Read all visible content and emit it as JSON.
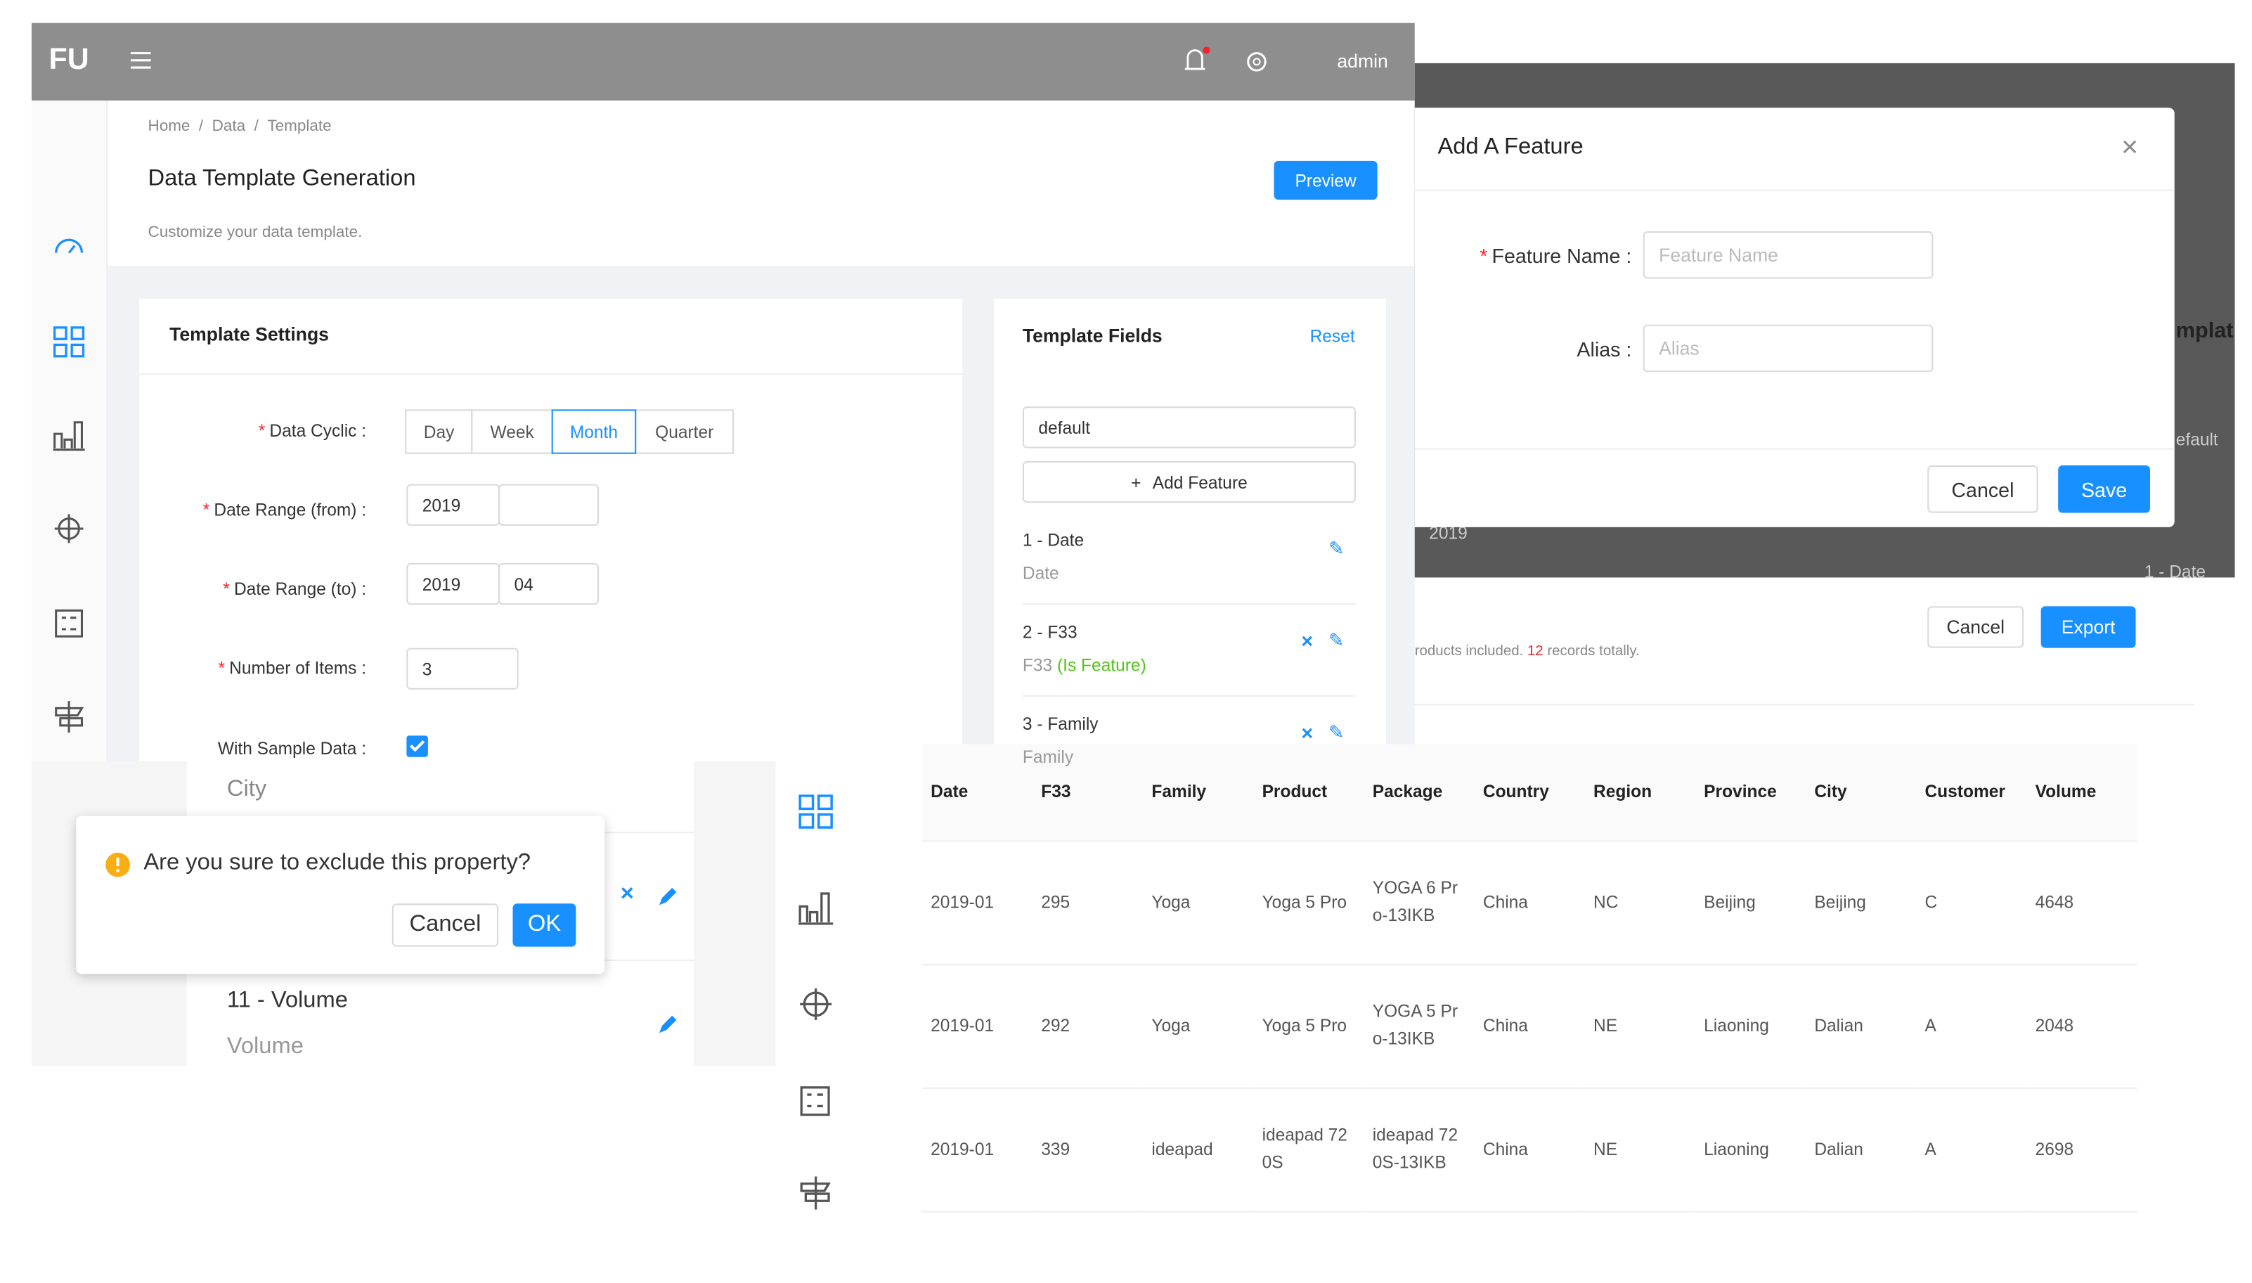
{
  "topbar": {
    "logo": "FU",
    "user": "admin"
  },
  "breadcrumb": [
    "Home",
    "Data",
    "Template"
  ],
  "page": {
    "title": "Data Template Generation",
    "subtitle": "Customize your data template.",
    "preview": "Preview"
  },
  "settings": {
    "title": "Template Settings",
    "cyclic_label": "Data Cyclic :",
    "cyclic_options": [
      "Day",
      "Week",
      "Month",
      "Quarter"
    ],
    "from_label": "Date Range (from) :",
    "from_year": "2019",
    "to_label": "Date Range (to) :",
    "to_year": "2019",
    "to_month": "04",
    "items_label": "Number of Items :",
    "items_value": "3",
    "sample_label": "With Sample Data :"
  },
  "fields": {
    "title": "Template Fields",
    "reset": "Reset",
    "select": "default",
    "add": "Add Feature",
    "items": [
      {
        "name": "1 - Date",
        "sub": "Date"
      },
      {
        "name": "2 - F33",
        "sub": "F33",
        "tag": "(Is Feature)"
      },
      {
        "name": "3 - Family",
        "sub": "Family"
      }
    ]
  },
  "modal": {
    "title": "Add A Feature",
    "name_label": "Feature Name :",
    "name_placeholder": "Feature Name",
    "alias_label": "Alias :",
    "alias_placeholder": "Alias",
    "cancel": "Cancel",
    "save": "Save"
  },
  "behind": {
    "template": "mplat",
    "default": "efault",
    "year": "2019",
    "field": "1 - Date"
  },
  "export": {
    "cancel": "Cancel",
    "export": "Export",
    "note_pre": "roducts included.",
    "count": "12",
    "note_post": "records totally."
  },
  "table": {
    "columns": [
      "Date",
      "F33",
      "Family",
      "Product",
      "Package",
      "Country",
      "Region",
      "Province",
      "City",
      "Customer",
      "Volume"
    ],
    "rows": [
      [
        "2019-01",
        "295",
        "Yoga",
        "Yoga 5 Pro",
        "YOGA 6 Pro-13IKB",
        "China",
        "NC",
        "Beijing",
        "Beijing",
        "C",
        "4648"
      ],
      [
        "2019-01",
        "292",
        "Yoga",
        "Yoga 5 Pro",
        "YOGA 5 Pro-13IKB",
        "China",
        "NE",
        "Liaoning",
        "Dalian",
        "A",
        "2048"
      ],
      [
        "2019-01",
        "339",
        "ideapad",
        "ideapad 720S",
        "ideapad 720S-13IKB",
        "China",
        "NE",
        "Liaoning",
        "Dalian",
        "A",
        "2698"
      ]
    ]
  },
  "confirm": {
    "above": "City",
    "question": "Are you sure to exclude this property?",
    "cancel": "Cancel",
    "ok": "OK",
    "item": "11 - Volume",
    "item_sub": "Volume"
  }
}
